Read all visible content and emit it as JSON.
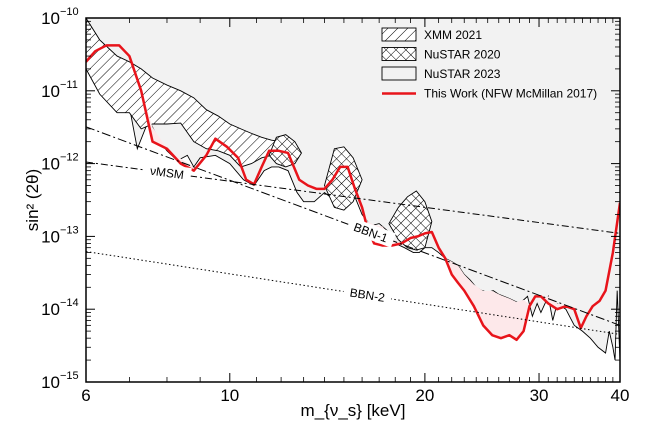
{
  "chart_data": {
    "type": "line",
    "xlabel": "m_{ν_s} [keV]",
    "ylabel": "sin² (2θ)",
    "x_scale": "log",
    "y_scale": "log",
    "xlim": [
      6,
      40
    ],
    "ylim": [
      1e-15,
      1e-10
    ],
    "x_ticks": [
      6,
      10,
      20,
      30,
      40
    ],
    "x_tick_labels": [
      "6",
      "10",
      "20",
      "30",
      "40"
    ],
    "y_ticks": [
      1e-15,
      1e-14,
      1e-13,
      1e-12,
      1e-11,
      1e-10
    ],
    "y_tick_labels": [
      {
        "base": "10",
        "exp": "−15"
      },
      {
        "base": "10",
        "exp": "−14"
      },
      {
        "base": "10",
        "exp": "−13"
      },
      {
        "base": "10",
        "exp": "−12"
      },
      {
        "base": "10",
        "exp": "−11"
      },
      {
        "base": "10",
        "exp": "−10"
      }
    ],
    "legend_position": "top-right",
    "legend": [
      {
        "label": "XMM 2021",
        "style": "hatch-diagonal"
      },
      {
        "label": "NuSTAR 2020",
        "style": "hatch-cross"
      },
      {
        "label": "NuSTAR 2023",
        "style": "fill-light-gray"
      },
      {
        "label": "This Work (NFW McMillan 2017)",
        "style": "line-red"
      }
    ],
    "colors": {
      "this_work": "#e8141b",
      "fill_gray": "#f2f2f2",
      "fill_pink": "#fde8ea"
    },
    "series": [
      {
        "name": "This Work (NFW McMillan 2017)",
        "x": [
          6.0,
          6.2,
          6.45,
          6.75,
          7.0,
          7.3,
          7.6,
          8.0,
          8.4,
          8.8,
          9.2,
          9.5,
          9.9,
          10.3,
          10.6,
          10.9,
          11.2,
          11.5,
          11.9,
          12.3,
          12.8,
          13.2,
          13.6,
          14.0,
          14.4,
          14.8,
          15.2,
          15.6,
          16.0,
          16.3,
          16.7,
          17.2,
          17.8,
          18.4,
          19.0,
          19.5,
          20.0,
          20.5,
          21.0,
          21.5,
          22.0,
          22.5,
          23.0,
          23.8,
          24.6,
          25.4,
          26.2,
          27.0,
          27.7,
          28.4,
          29.0,
          29.6,
          30.2,
          31.0,
          32.0,
          33.0,
          34.0,
          34.8,
          35.5,
          36.3,
          37.2,
          38.0,
          39.0,
          40.0
        ],
        "y": [
          2.5e-11,
          3.5e-11,
          4.2e-11,
          4.2e-11,
          3e-11,
          1e-11,
          2e-12,
          1.6e-12,
          1e-12,
          8e-13,
          1.3e-12,
          2.2e-12,
          1.7e-12,
          1.2e-12,
          6e-13,
          5.2e-13,
          9e-13,
          1.5e-12,
          1.5e-12,
          1.4e-12,
          6e-13,
          5e-13,
          4.5e-13,
          4.5e-13,
          6e-13,
          9e-13,
          9e-13,
          4.5e-13,
          2.5e-13,
          1.3e-13,
          8e-14,
          7.5e-14,
          7.5e-14,
          8e-14,
          9.5e-14,
          1e-13,
          1.1e-13,
          1.15e-13,
          7e-14,
          5e-14,
          3e-14,
          2.3e-14,
          1.8e-14,
          1.1e-14,
          6e-15,
          4.4e-15,
          4e-15,
          4.4e-15,
          3.8e-15,
          5e-15,
          1.1e-14,
          1.5e-14,
          1.5e-14,
          1.2e-14,
          1e-14,
          1.1e-14,
          1e-14,
          5.5e-15,
          8e-15,
          1.1e-14,
          1.3e-14,
          1.8e-14,
          6e-14,
          2.9e-13
        ]
      },
      {
        "name": "νMSM",
        "x": [
          6,
          40
        ],
        "y": [
          1.05e-12,
          1.1e-13
        ]
      },
      {
        "name": "BBN-1",
        "x": [
          6,
          40
        ],
        "y": [
          3.2e-12,
          6e-15
        ]
      },
      {
        "name": "BBN-2",
        "x": [
          6,
          40
        ],
        "y": [
          6.2e-14,
          4.5e-15
        ]
      }
    ],
    "regions": [
      {
        "name": "NuSTAR 2023",
        "x": [
          6.0,
          6.4,
          6.8,
          7.0,
          7.2,
          7.5,
          7.8,
          8.0,
          8.3,
          8.6,
          8.8,
          9.0,
          9.5,
          10.0,
          10.5,
          10.9,
          11.3,
          11.6,
          11.9,
          12.3,
          12.7,
          13.0,
          13.5,
          14.0,
          14.6,
          15.1,
          15.5,
          16.0,
          16.5,
          17.0,
          17.5,
          18.0,
          18.6,
          19.2,
          19.6,
          20.0,
          20.5,
          21.0,
          21.5,
          22.0,
          22.5,
          23.0,
          23.5,
          24.0,
          24.5,
          25.0,
          25.5,
          26.0,
          27.0,
          28.0,
          28.8,
          29.3,
          29.8,
          30.2,
          31.0,
          31.5,
          32.0,
          33.0,
          34.0,
          35.0,
          36.0,
          37.0,
          38.0,
          38.5,
          39.0,
          39.3,
          39.6,
          40.0
        ],
        "y_bottom": [
          3e-11,
          1e-11,
          1.2e-11,
          6e-12,
          1.6e-12,
          4e-12,
          2e-12,
          1.5e-12,
          1.1e-12,
          1.3e-12,
          9e-13,
          1.2e-12,
          1.3e-12,
          1e-12,
          6e-13,
          5e-13,
          8e-13,
          9e-13,
          9e-13,
          8e-13,
          4e-13,
          3e-13,
          3e-13,
          4e-13,
          3e-13,
          5e-13,
          4e-13,
          2e-13,
          1.4e-13,
          1.5e-13,
          1.2e-13,
          8e-14,
          7e-14,
          6e-14,
          6e-14,
          7e-14,
          7e-14,
          6e-14,
          5e-14,
          4.5e-14,
          4e-14,
          3e-14,
          2.5e-14,
          2e-14,
          1.8e-14,
          1.7e-14,
          1.8e-14,
          1.6e-14,
          1.4e-14,
          1.2e-14,
          1.5e-14,
          8e-15,
          1.2e-14,
          9e-15,
          1.5e-14,
          7e-15,
          1.2e-14,
          1e-14,
          6e-15,
          5e-15,
          4e-15,
          3e-15,
          2.5e-15,
          5e-15,
          3e-15,
          2e-15,
          1.8e-14,
          2e-15
        ]
      },
      {
        "name": "XMM 2021",
        "x": [
          6.0,
          6.3,
          6.7,
          7.0,
          7.3,
          7.6,
          8.0,
          8.4,
          8.8,
          9.2,
          9.6,
          10.0,
          10.4,
          10.8,
          11.2,
          11.6,
          12.0
        ],
        "y_top": [
          1e-10,
          5e-11,
          3e-11,
          2.5e-11,
          2e-11,
          1.5e-11,
          1.2e-11,
          1e-11,
          8e-12,
          5.5e-12,
          4.5e-12,
          3.5e-12,
          3e-12,
          2.6e-12,
          2.3e-12,
          2.1e-12,
          2e-12
        ],
        "y_bottom": [
          2e-11,
          9e-12,
          5e-12,
          5e-12,
          3e-12,
          3.5e-12,
          3.5e-12,
          3.6e-12,
          2e-12,
          1.6e-12,
          1.5e-12,
          1.3e-12,
          9e-13,
          1e-12,
          1.2e-12,
          1.3e-12,
          1.3e-12
        ]
      },
      {
        "name": "NuSTAR 2020 (a)",
        "x": [
          11.5,
          11.8,
          12.2,
          12.6,
          12.9
        ],
        "y_top": [
          1.3e-12,
          2.3e-12,
          2.5e-12,
          2e-12,
          1.4e-12
        ],
        "y_bottom": [
          1.3e-12,
          1e-12,
          9e-13,
          1e-12,
          1.4e-12
        ]
      },
      {
        "name": "NuSTAR 2020 (b)",
        "x": [
          14.0,
          14.5,
          15.0,
          15.5,
          16.0
        ],
        "y_top": [
          5e-13,
          1.6e-12,
          1.7e-12,
          1.2e-12,
          6e-13
        ],
        "y_bottom": [
          5e-13,
          2.5e-13,
          2.3e-13,
          3e-13,
          6e-13
        ]
      },
      {
        "name": "NuSTAR 2020 (c)",
        "x": [
          17.6,
          18.2,
          18.8,
          19.4,
          20.0,
          20.5
        ],
        "y_top": [
          1.5e-13,
          2.5e-13,
          3.5e-13,
          4.2e-13,
          3e-13,
          1.6e-13
        ],
        "y_bottom": [
          1.5e-13,
          9e-14,
          7e-14,
          6.5e-14,
          7e-14,
          1.6e-13
        ]
      }
    ],
    "line_labels": [
      {
        "text": "νMSM",
        "series": "νMSM",
        "x": 8.0
      },
      {
        "text": "BBN-1",
        "series": "BBN-1",
        "x": 16.5
      },
      {
        "text": "BBN-2",
        "series": "BBN-2",
        "x": 16.3
      }
    ]
  }
}
